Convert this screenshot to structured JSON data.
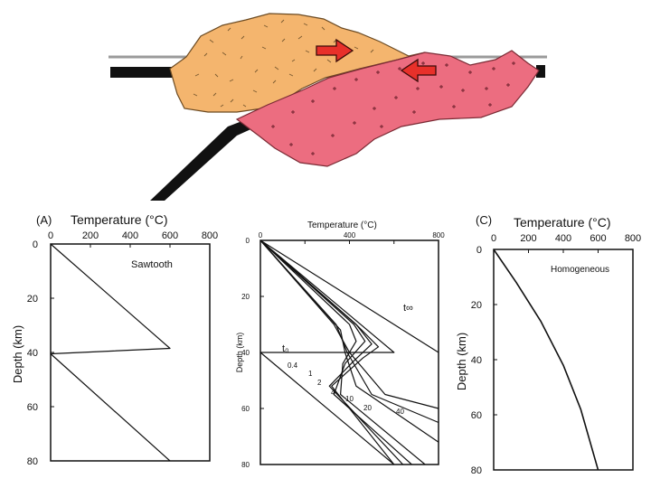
{
  "colors": {
    "upper_block": "#f4b56e",
    "lower_block": "#ec6d80",
    "arrow": "#e8302a",
    "line": "#111111",
    "surface": "#9a9a9a"
  },
  "panels": [
    {
      "id": "A",
      "label": "(A)",
      "title": "Temperature (°C)",
      "y_label": "Depth (km)",
      "x_ticks": [
        "0",
        "200",
        "400",
        "600",
        "800"
      ],
      "y_ticks": [
        "0",
        "20",
        "40",
        "60",
        "80"
      ],
      "annotation": "Sawtooth"
    },
    {
      "id": "B",
      "label": "",
      "title": "Temperature (°C)",
      "y_label": "Depth (km)",
      "x_ticks": [
        "0",
        "",
        "400",
        "",
        "800"
      ],
      "y_ticks": [
        "0",
        "20",
        "40",
        "60",
        "80"
      ],
      "annotation_t_inf": "t∞",
      "annotation_t0": "t₀",
      "curve_labels": [
        "0.4",
        "1",
        "2",
        "4",
        "10",
        "20",
        "40"
      ]
    },
    {
      "id": "C",
      "label": "(C)",
      "title": "Temperature (°C)",
      "y_label": "Depth (km)",
      "x_ticks": [
        "0",
        "200",
        "400",
        "600",
        "800"
      ],
      "y_ticks": [
        "0",
        "20",
        "40",
        "60",
        "80"
      ],
      "annotation": "Homogeneous"
    }
  ],
  "chart_data": [
    {
      "type": "line",
      "panel": "A",
      "xlim": [
        0,
        800
      ],
      "ylim": [
        0,
        80
      ],
      "series": [
        {
          "points": [
            [
              0,
              0
            ],
            [
              600,
              38.5
            ],
            [
              0,
              40.5
            ],
            [
              600,
              80
            ]
          ]
        }
      ]
    },
    {
      "type": "line",
      "panel": "B",
      "xlim": [
        0,
        800
      ],
      "ylim": [
        0,
        80
      ],
      "series": [
        {
          "name": "t∞",
          "points": [
            [
              0,
              0
            ],
            [
              800,
              40
            ]
          ]
        },
        {
          "name": "t₀",
          "points": [
            [
              0,
              0
            ],
            [
              600,
              40
            ],
            [
              0,
              40
            ],
            [
              600,
              80
            ]
          ]
        },
        {
          "name": "0.4",
          "points": [
            [
              0,
              0
            ],
            [
              430,
              30
            ],
            [
              530,
              38
            ],
            [
              460,
              42
            ],
            [
              320,
              52
            ],
            [
              600,
              80
            ]
          ]
        },
        {
          "name": "1",
          "points": [
            [
              0,
              0
            ],
            [
              430,
              30
            ],
            [
              500,
              37
            ],
            [
              420,
              43
            ],
            [
              310,
              52
            ],
            [
              640,
              80
            ]
          ]
        },
        {
          "name": "2",
          "points": [
            [
              0,
              0
            ],
            [
              420,
              30
            ],
            [
              470,
              36
            ],
            [
              380,
              44
            ],
            [
              330,
              55
            ],
            [
              680,
              80
            ]
          ]
        },
        {
          "name": "4",
          "points": [
            [
              0,
              0
            ],
            [
              400,
              30
            ],
            [
              430,
              36
            ],
            [
              370,
              44
            ],
            [
              360,
              55
            ],
            [
              740,
              80
            ]
          ]
        },
        {
          "name": "10",
          "points": [
            [
              0,
              0
            ],
            [
              360,
              32
            ],
            [
              380,
              40
            ],
            [
              430,
              52
            ],
            [
              800,
              72
            ]
          ]
        },
        {
          "name": "20",
          "points": [
            [
              0,
              0
            ],
            [
              340,
              30
            ],
            [
              390,
              40
            ],
            [
              500,
              55
            ],
            [
              800,
              65
            ]
          ]
        },
        {
          "name": "40",
          "points": [
            [
              0,
              0
            ],
            [
              330,
              30
            ],
            [
              400,
              40
            ],
            [
              560,
              55
            ],
            [
              800,
              60
            ]
          ]
        }
      ]
    },
    {
      "type": "line",
      "panel": "C",
      "xlim": [
        0,
        800
      ],
      "ylim": [
        0,
        80
      ],
      "series": [
        {
          "points": [
            [
              0,
              0
            ],
            [
              130,
              12
            ],
            [
              270,
              26
            ],
            [
              400,
              42
            ],
            [
              500,
              58
            ],
            [
              600,
              80
            ]
          ]
        }
      ]
    }
  ]
}
